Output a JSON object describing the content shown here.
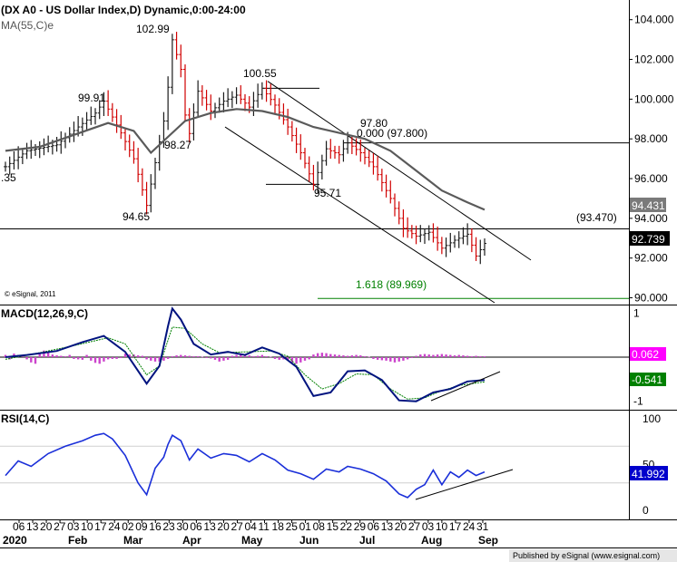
{
  "chart_data": {
    "type": "line",
    "header": {
      "title": "(DX A0 - US Dollar Index,D) Dynamic,0:00-24:00",
      "ma_label": "MA(55,C)e",
      "credit": "© eSignal, 2011",
      "published": "Published by eSignal (www.esignal.com)"
    },
    "x_axis": {
      "date_ticks": [
        "06",
        "13",
        "20",
        "27",
        "03",
        "10",
        "17",
        "24",
        "02",
        "09",
        "16",
        "23",
        "30",
        "06",
        "13",
        "20",
        "27",
        "04",
        "11",
        "18",
        "25",
        "01",
        "08",
        "15",
        "22",
        "29",
        "06",
        "13",
        "20",
        "27",
        "03",
        "10",
        "17",
        "24",
        "31"
      ],
      "months": [
        "Feb",
        "Mar",
        "Apr",
        "May",
        "Jun",
        "Jul",
        "Aug",
        "Sep"
      ],
      "year": "2020"
    },
    "price_panel": {
      "y_ticks": [
        "104.000",
        "102.000",
        "100.000",
        "98.000",
        "96.000",
        "94.000",
        "92.000",
        "90.000"
      ],
      "ylim": [
        89.75,
        104.9
      ],
      "price_points": [
        [
          0,
          96.6
        ],
        [
          5,
          97.4
        ],
        [
          12,
          97.7
        ],
        [
          17,
          98.6
        ],
        [
          21,
          99.3
        ],
        [
          23,
          99.9
        ],
        [
          27,
          98.3
        ],
        [
          30,
          97.0
        ],
        [
          33,
          94.65
        ],
        [
          35,
          96.8
        ],
        [
          37,
          98.9
        ],
        [
          38,
          100.6
        ],
        [
          39,
          102.99
        ],
        [
          41,
          101.5
        ],
        [
          42,
          99.2
        ],
        [
          43,
          98.27
        ],
        [
          45,
          100.4
        ],
        [
          48,
          99.4
        ],
        [
          51,
          99.9
        ],
        [
          54,
          100.2
        ],
        [
          57,
          99.6
        ],
        [
          60,
          100.55
        ],
        [
          63,
          99.7
        ],
        [
          66,
          98.6
        ],
        [
          69,
          97.3
        ],
        [
          72,
          95.71
        ],
        [
          75,
          97.5
        ],
        [
          78,
          97.2
        ],
        [
          80,
          97.8
        ],
        [
          83,
          97.3
        ],
        [
          86,
          96.6
        ],
        [
          90,
          95.0
        ],
        [
          93,
          93.5
        ],
        [
          96,
          93.1
        ],
        [
          99,
          93.3
        ],
        [
          102,
          92.5
        ],
        [
          105,
          92.9
        ],
        [
          108,
          93.2
        ],
        [
          110,
          92.1
        ],
        [
          112,
          92.739
        ]
      ],
      "ma55_points": [
        [
          0,
          97.4
        ],
        [
          8,
          97.6
        ],
        [
          16,
          98.2
        ],
        [
          24,
          98.8
        ],
        [
          30,
          98.4
        ],
        [
          34,
          97.3
        ],
        [
          38,
          98.1
        ],
        [
          42,
          98.9
        ],
        [
          48,
          99.3
        ],
        [
          54,
          99.5
        ],
        [
          60,
          99.4
        ],
        [
          66,
          99.1
        ],
        [
          72,
          98.6
        ],
        [
          78,
          98.3
        ],
        [
          84,
          98.0
        ],
        [
          90,
          97.4
        ],
        [
          96,
          96.4
        ],
        [
          102,
          95.4
        ],
        [
          108,
          94.8
        ],
        [
          112,
          94.431
        ]
      ],
      "ma55_value": "94.431",
      "last_value": "92.739",
      "annotations": {
        "a1": "102.99",
        "a2": "99.91",
        "a3": "100.55",
        "a4": "98.27",
        "a5": "97.80",
        "a6": "95.71",
        "a7": "94.65",
        "a8": ".35",
        "fib0": "0.000 (97.800)",
        "level1": "(93.470)",
        "fib1618": "1.618 (89.969)"
      },
      "colors": {
        "up": "#1b1b1b",
        "down": "#d00000",
        "ma": "#5a5a5a",
        "fib": "#008000",
        "line": "#000000"
      }
    },
    "macd_panel": {
      "label": "MACD(12,26,9,C)",
      "y_ticks": [
        "1",
        "0",
        "-1"
      ],
      "ylim": [
        -1.15,
        1.15
      ],
      "value1": "0.062",
      "value2": "-0.541",
      "macd_points": [
        [
          0,
          0.0
        ],
        [
          5,
          0.05
        ],
        [
          12,
          0.14
        ],
        [
          18,
          0.34
        ],
        [
          23,
          0.48
        ],
        [
          28,
          0.12
        ],
        [
          33,
          -0.6
        ],
        [
          36,
          -0.2
        ],
        [
          38,
          0.7
        ],
        [
          39,
          1.1
        ],
        [
          41,
          0.85
        ],
        [
          44,
          0.3
        ],
        [
          48,
          0.06
        ],
        [
          52,
          0.12
        ],
        [
          56,
          0.05
        ],
        [
          60,
          0.22
        ],
        [
          64,
          0.08
        ],
        [
          68,
          -0.22
        ],
        [
          72,
          -0.88
        ],
        [
          76,
          -0.8
        ],
        [
          80,
          -0.32
        ],
        [
          84,
          -0.3
        ],
        [
          88,
          -0.52
        ],
        [
          92,
          -0.98
        ],
        [
          96,
          -1.0
        ],
        [
          100,
          -0.8
        ],
        [
          104,
          -0.72
        ],
        [
          108,
          -0.55
        ],
        [
          112,
          -0.52
        ]
      ],
      "signal_points": [
        [
          0,
          -0.05
        ],
        [
          8,
          0.1
        ],
        [
          16,
          0.26
        ],
        [
          24,
          0.44
        ],
        [
          28,
          0.3
        ],
        [
          33,
          -0.4
        ],
        [
          36,
          -0.2
        ],
        [
          39,
          0.68
        ],
        [
          42,
          0.65
        ],
        [
          46,
          0.3
        ],
        [
          50,
          0.1
        ],
        [
          56,
          0.12
        ],
        [
          62,
          0.14
        ],
        [
          66,
          0.02
        ],
        [
          70,
          -0.4
        ],
        [
          74,
          -0.72
        ],
        [
          78,
          -0.6
        ],
        [
          82,
          -0.38
        ],
        [
          86,
          -0.4
        ],
        [
          90,
          -0.72
        ],
        [
          94,
          -0.95
        ],
        [
          98,
          -0.92
        ],
        [
          102,
          -0.76
        ],
        [
          106,
          -0.64
        ],
        [
          112,
          -0.56
        ]
      ],
      "hist_values": [
        0.05,
        -0.05,
        0.08,
        0.05,
        0.05,
        -0.05,
        -0.12,
        -0.15,
        0.08,
        0.15,
        0.1,
        0.06,
        0.04,
        0.03,
        0.02,
        0.05,
        -0.04,
        -0.05,
        -0.06,
        0.05,
        -0.08,
        -0.13,
        -0.15,
        -0.1,
        -0.05,
        -0.04,
        -0.04,
        -0.02,
        0.08,
        0.06,
        0.06,
        0.04,
        0.03,
        -0.05,
        -0.08,
        -0.1,
        -0.1,
        -0.08,
        -0.04,
        0.02,
        0.04,
        0.05,
        0.04,
        0.03,
        0.02,
        0.02,
        0.01,
        -0.02,
        -0.03,
        -0.06,
        -0.1,
        -0.08,
        -0.06,
        0.03,
        0.05,
        0.06,
        0.04,
        0.04,
        0.02,
        0.03,
        0.05,
        0.02,
        0.01,
        -0.04,
        -0.06,
        -0.05,
        -0.08,
        -0.12,
        -0.15,
        -0.12,
        -0.08,
        -0.05,
        0.06,
        0.09,
        0.1,
        0.09,
        0.07,
        0.06,
        0.05,
        0.04,
        0.03,
        0.04,
        0.05,
        0.04,
        0.02,
        0.01,
        -0.04,
        -0.06,
        -0.07,
        -0.08,
        -0.1,
        -0.12,
        -0.1,
        -0.08,
        -0.05,
        -0.02,
        0.03,
        0.06,
        0.07,
        0.06,
        0.05,
        0.06,
        0.07,
        0.06,
        0.05,
        0.04,
        0.05,
        0.04,
        0.03,
        0.02,
        0.03,
        0.02,
        0.02
      ],
      "colors": {
        "macd": "#00137f",
        "signal": "#008000",
        "hist": "#cc44cc",
        "value1_bg": "#ff00ff",
        "value2_bg": "#008000"
      }
    },
    "rsi_panel": {
      "label": "RSI(14,C)",
      "y_ticks": [
        "100",
        "50",
        "0"
      ],
      "ylim": [
        0,
        100
      ],
      "value": "41.992",
      "rsi_points": [
        [
          0,
          38
        ],
        [
          3,
          54
        ],
        [
          6,
          48
        ],
        [
          10,
          62
        ],
        [
          14,
          70
        ],
        [
          18,
          76
        ],
        [
          21,
          82
        ],
        [
          23,
          84
        ],
        [
          25,
          78
        ],
        [
          28,
          60
        ],
        [
          31,
          30
        ],
        [
          33,
          17
        ],
        [
          35,
          46
        ],
        [
          37,
          58
        ],
        [
          38,
          72
        ],
        [
          39,
          82
        ],
        [
          41,
          76
        ],
        [
          43,
          55
        ],
        [
          45,
          67
        ],
        [
          48,
          57
        ],
        [
          51,
          62
        ],
        [
          54,
          60
        ],
        [
          57,
          53
        ],
        [
          60,
          62
        ],
        [
          63,
          55
        ],
        [
          66,
          44
        ],
        [
          69,
          40
        ],
        [
          72,
          34
        ],
        [
          75,
          45
        ],
        [
          78,
          42
        ],
        [
          80,
          48
        ],
        [
          83,
          45
        ],
        [
          86,
          40
        ],
        [
          89,
          32
        ],
        [
          92,
          18
        ],
        [
          94,
          14
        ],
        [
          96,
          23
        ],
        [
          98,
          28
        ],
        [
          100,
          44
        ],
        [
          102,
          28
        ],
        [
          104,
          42
        ],
        [
          106,
          36
        ],
        [
          108,
          44
        ],
        [
          110,
          38
        ],
        [
          112,
          41.992
        ]
      ],
      "colors": {
        "rsi": "#1a2fd9",
        "value_bg": "#0000cc"
      }
    }
  }
}
